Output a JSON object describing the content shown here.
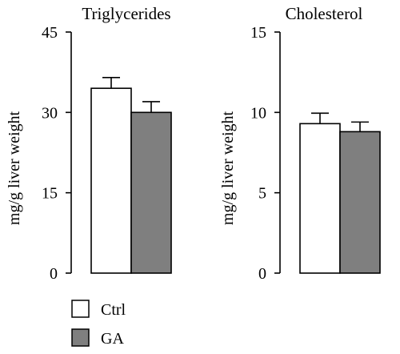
{
  "chart_data": [
    {
      "type": "bar",
      "title": "Triglycerides",
      "ylabel": "mg/g liver weight",
      "ylim": [
        0,
        45
      ],
      "yticks": [
        "0",
        "15",
        "30",
        "45"
      ],
      "categories": [
        "Ctrl",
        "GA"
      ],
      "values": [
        34.5,
        30.0
      ],
      "errors": [
        2.0,
        2.0
      ],
      "colors": [
        "#ffffff",
        "#7f7f7f"
      ],
      "grid": false
    },
    {
      "type": "bar",
      "title": "Cholesterol",
      "ylabel": "mg/g liver weight",
      "ylim": [
        0,
        15
      ],
      "yticks": [
        "0",
        "5",
        "10",
        "15"
      ],
      "categories": [
        "Ctrl",
        "GA"
      ],
      "values": [
        9.3,
        8.8
      ],
      "errors": [
        0.65,
        0.6
      ],
      "colors": [
        "#ffffff",
        "#7f7f7f"
      ],
      "grid": false
    }
  ],
  "legend": {
    "items": [
      {
        "label": "Ctrl",
        "color": "#ffffff"
      },
      {
        "label": "GA",
        "color": "#7f7f7f"
      }
    ]
  }
}
